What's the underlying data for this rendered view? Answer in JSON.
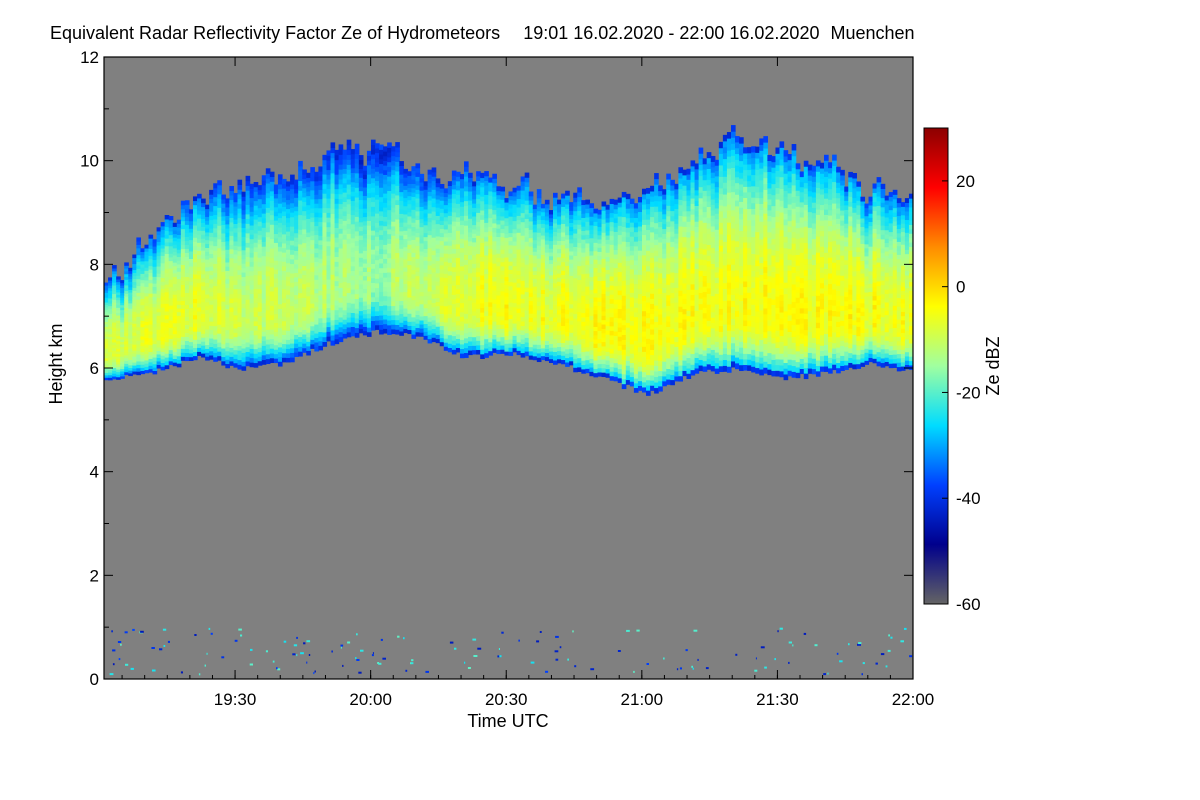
{
  "chart_data": {
    "type": "heatmap",
    "title": "Equivalent Radar Reflectivity Factor Ze of Hydrometeors",
    "period": "19:01 16.02.2020 - 22:00 16.02.2020",
    "location": "Muenchen",
    "xlabel": "Time UTC",
    "ylabel": "Height km",
    "colorbar_label": "Ze dBZ",
    "x_range_utc": [
      "19:01",
      "22:00"
    ],
    "x_ticks": [
      "19:30",
      "20:00",
      "20:30",
      "21:00",
      "21:30",
      "22:00"
    ],
    "x_tick_minutes": [
      29,
      59,
      89,
      119,
      149,
      179
    ],
    "x_total_minutes": 179,
    "ylim": [
      0,
      12
    ],
    "y_ticks": [
      "0",
      "2",
      "4",
      "6",
      "8",
      "10",
      "12"
    ],
    "y_tick_values": [
      0,
      2,
      4,
      6,
      8,
      10,
      12
    ],
    "zlim": [
      -60,
      30
    ],
    "colorbar_ticks": [
      "-60",
      "-40",
      "-20",
      "0",
      "20"
    ],
    "colorbar_tick_values": [
      -60,
      -40,
      -20,
      0,
      20
    ],
    "background_color": "#808080",
    "colormap": [
      "#646464",
      "#00008c",
      "#0040ff",
      "#00dcff",
      "#a0ffa0",
      "#ffff00",
      "#ff8c00",
      "#ff0000",
      "#8c0000"
    ],
    "cloud_layer": {
      "time_minutes": [
        0,
        10,
        20,
        30,
        40,
        50,
        60,
        70,
        80,
        90,
        100,
        110,
        120,
        130,
        140,
        150,
        160,
        170,
        179
      ],
      "base_km": [
        5.8,
        5.9,
        6.2,
        6.0,
        6.1,
        6.5,
        6.7,
        6.6,
        6.2,
        6.3,
        6.1,
        5.8,
        5.5,
        5.9,
        6.0,
        5.8,
        5.9,
        6.1,
        5.9
      ],
      "top_km": [
        7.6,
        8.6,
        9.4,
        9.6,
        9.8,
        10.1,
        10.2,
        10.0,
        9.9,
        9.5,
        9.3,
        9.1,
        9.3,
        10.2,
        10.3,
        10.1,
        9.9,
        9.4,
        9.4
      ],
      "peak_dbz": [
        -8,
        -7,
        -6,
        -10,
        -9,
        -12,
        -15,
        -10,
        -6,
        -5,
        -6,
        -4,
        -3,
        -5,
        -4,
        -5,
        -4,
        -5,
        -6
      ]
    }
  }
}
